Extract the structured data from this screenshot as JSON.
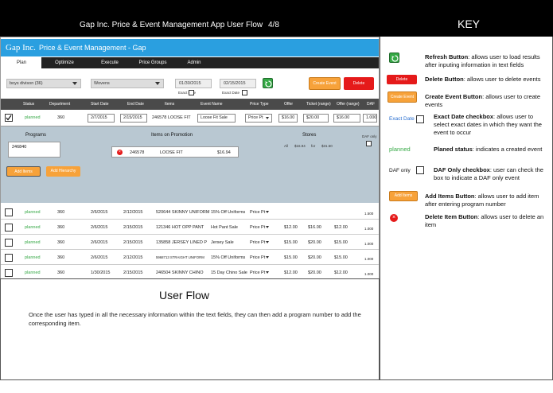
{
  "header": {
    "title": "Gap Inc. Price & Event Management App User Flow",
    "page": "4/8",
    "key_title": "KEY"
  },
  "app": {
    "brand": "Gap Inc.",
    "name": "Price & Event Management - Gap"
  },
  "tabs": [
    {
      "label": "Plan"
    },
    {
      "label": "Optimize"
    },
    {
      "label": "Execute"
    },
    {
      "label": "Price Groups"
    },
    {
      "label": "Admin"
    }
  ],
  "filters": {
    "division": "boys divison (36)",
    "category": "Wovens",
    "start_date": "01/30/2015",
    "end_date": "02/15/2015",
    "exact_date_label": "Exact Date",
    "create_event": "Create Event",
    "delete": "Delete"
  },
  "columns": [
    "Status",
    "Department",
    "Start Date",
    "End Date",
    "Items",
    "Event Name",
    "Price Type",
    "Offer",
    "Ticket (range)",
    "Offer (range)",
    "DAF"
  ],
  "row1": {
    "status": "planned",
    "department": "360",
    "start": "2/7/2015",
    "end": "2/15/2015",
    "item": "246578 LOOSE FIT",
    "event_name": "Loose Fit Sale",
    "price_type": "Price Pt",
    "offer": "$16.00",
    "ticket": "$20.00",
    "offer_range": "$16.00",
    "daf": "1.000"
  },
  "programs": {
    "label": "Programs",
    "value": "246840",
    "items_label": "Items on Promotion",
    "item_code": "246578",
    "item_name": "LOOSE FIT",
    "item_price": "$16.94",
    "stores_label": "Stores",
    "stores_all": "All",
    "stores_low": "$16.94",
    "stores_for": "for",
    "stores_high": "$31.50",
    "daf_only": "DAF only",
    "add_items": "Add Items",
    "add_hierarchy": "Add Hierarchy"
  },
  "rows": [
    {
      "status": "planned",
      "dept": "360",
      "start": "2/6/2015",
      "end": "2/12/2015",
      "item": "520644 SKINNY UNIFORM",
      "event": "15% Off Uniforms",
      "ptype": "Price Pt",
      "offer": "",
      "ticket": "",
      "orange": "",
      "daf": "1.500"
    },
    {
      "status": "planned",
      "dept": "360",
      "start": "2/6/2015",
      "end": "2/15/2015",
      "item": "121346 HOT OPP PANT",
      "event": "Hot Pant Sale",
      "ptype": "Price Pt",
      "offer": "$12.00",
      "ticket": "$16.00",
      "orange": "$12.00",
      "daf": "1.000"
    },
    {
      "status": "planned",
      "dept": "360",
      "start": "2/6/2015",
      "end": "2/15/2015",
      "item": "135858 JERSEY LINED P",
      "event": "Jersey Sale",
      "ptype": "Price Pt",
      "offer": "$15.00",
      "ticket": "$20.00",
      "orange": "$15.00",
      "daf": "1.000"
    },
    {
      "status": "planned",
      "dept": "360",
      "start": "2/6/2015",
      "end": "2/12/2015",
      "item": "5968713 STRAIGHT UNIFORM",
      "event": "15% Off Uniforms",
      "ptype": "Price Pt",
      "offer": "$15.00",
      "ticket": "$20.00",
      "orange": "$15.00",
      "daf": "1.000"
    },
    {
      "status": "planned",
      "dept": "360",
      "start": "1/30/2015",
      "end": "2/15/2015",
      "item": "246504 SKINNY CHINO",
      "event": "15 Day Chino Sale",
      "ptype": "Price Pt",
      "offer": "$12.00",
      "ticket": "$20.00",
      "orange": "$12.00",
      "daf": "1.000"
    }
  ],
  "userflow": {
    "title": "User Flow",
    "text": "Once the user has typed in all the necessary information within the text fields, they can then add a program number to add the corresponding item."
  },
  "key": [
    {
      "term": "Refresh Button",
      "desc": ": allows user to load results after inputing information in text fields"
    },
    {
      "term": "Delete Button",
      "desc": ": allows user to delete events",
      "btn": "Delete"
    },
    {
      "term": "Create Event Button",
      "desc": ": allows user to create events",
      "btn": "Create Event"
    },
    {
      "term": "Exact Date checkbox",
      "desc": ": allows user to select exact dates in which they want the event to occur",
      "lbl": "Exact Date"
    },
    {
      "term": "Planed status",
      "desc": ": indicates a created event",
      "lbl": "planned"
    },
    {
      "term": "DAF Only checkbox",
      "desc": ": user can check the box to indicate a DAF only event",
      "lbl": "DAF only"
    },
    {
      "term": "Add Items Button",
      "desc": ": allows user to add item after entering program number",
      "btn": "Add Items"
    },
    {
      "term": "Delete Item Button",
      "desc": ": allows user to delete an item"
    }
  ],
  "colors": {
    "accent_blue": "#2a9fe0",
    "refresh_green": "#35a845",
    "delete_red": "#e51a1a",
    "create_orange": "#f7a23a"
  }
}
